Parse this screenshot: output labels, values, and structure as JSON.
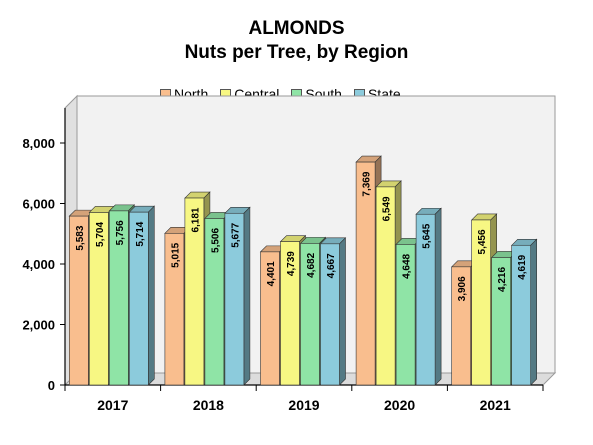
{
  "chart_data": {
    "type": "bar",
    "title": "ALMONDS",
    "subtitle": "Nuts per Tree, by Region",
    "categories": [
      "2017",
      "2018",
      "2019",
      "2020",
      "2021"
    ],
    "series": [
      {
        "name": "North",
        "color": "#f9be8e",
        "values": [
          5583,
          5015,
          4401,
          7369,
          3906
        ],
        "labels": [
          "5,583",
          "5,015",
          "4,401",
          "7,369",
          "3,906"
        ]
      },
      {
        "name": "Central",
        "color": "#f7f783",
        "values": [
          5704,
          6181,
          4739,
          6549,
          5456
        ],
        "labels": [
          "5,704",
          "6,181",
          "4,739",
          "6,549",
          "5,456"
        ]
      },
      {
        "name": "South",
        "color": "#8fe4a6",
        "values": [
          5756,
          5506,
          4682,
          4648,
          4216
        ],
        "labels": [
          "5,756",
          "5,506",
          "4,682",
          "4,648",
          "4,216"
        ]
      },
      {
        "name": "State",
        "color": "#8ccbdc",
        "values": [
          5714,
          5677,
          4667,
          5645,
          4619
        ],
        "labels": [
          "5,714",
          "5,677",
          "4,667",
          "5,645",
          "4,619"
        ]
      }
    ],
    "ylim": [
      0,
      8000
    ],
    "yticks": [
      0,
      2000,
      4000,
      6000,
      8000
    ],
    "ytick_labels": [
      "0",
      "2,000",
      "4,000",
      "6,000",
      "8,000"
    ],
    "legend_position": "top",
    "grid": false
  }
}
